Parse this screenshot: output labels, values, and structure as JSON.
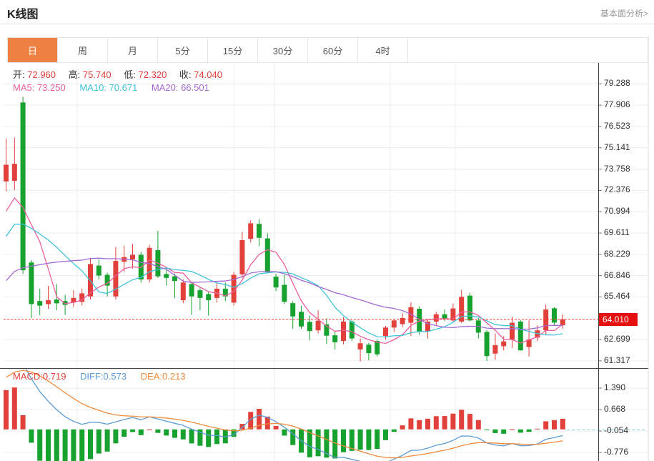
{
  "header": {
    "title": "K线图",
    "link": "基本面分析>"
  },
  "tabs": {
    "active_index": 0,
    "items": [
      "日",
      "周",
      "月",
      "5分",
      "15分",
      "30分",
      "60分",
      "4时"
    ]
  },
  "info_bar": {
    "open_label": "开:",
    "open_value": "72.960",
    "high_label": "高:",
    "high_value": "75.740",
    "low_label": "低:",
    "low_value": "72.320",
    "close_label": "收:",
    "close_value": "74.040"
  },
  "ma_bar": {
    "ma5": "MA5: 73.250",
    "ma10": "MA10: 70.671",
    "ma20": "MA20: 66.501"
  },
  "macd_bar": {
    "macd": "MACD:0.719",
    "diff": "DIFF:0.573",
    "dea": "DEA:0.213"
  },
  "chart_data": {
    "type": "candlestick",
    "title": "K线图 日K with MACD",
    "legend_position": "top-left overlay",
    "grid": true,
    "price_axis_ticks": [
      "79.288",
      "77.906",
      "76.523",
      "75.141",
      "73.758",
      "72.376",
      "70.994",
      "69.611",
      "68.229",
      "66.846",
      "65.464",
      "62.699",
      "61.317"
    ],
    "price_axis_range": [
      60.85,
      80.6
    ],
    "macd_axis_ticks": [
      "1.390",
      "0.668",
      "-0.054",
      "-0.776"
    ],
    "macd_axis_range": [
      -1.06,
      2.04
    ],
    "current_price": 64.01,
    "current_price_label": "64.010",
    "candles_ohlc": [
      [
        72.96,
        75.74,
        72.32,
        74.04
      ],
      [
        73.0,
        75.8,
        72.4,
        74.1
      ],
      [
        78.08,
        78.45,
        66.95,
        67.2
      ],
      [
        67.7,
        67.85,
        64.1,
        65.0
      ],
      [
        65.2,
        66.0,
        64.3,
        64.9
      ],
      [
        65.0,
        66.2,
        64.7,
        65.25
      ],
      [
        65.3,
        66.3,
        64.6,
        65.05
      ],
      [
        65.2,
        65.6,
        64.3,
        64.95
      ],
      [
        65.1,
        65.9,
        64.8,
        65.4
      ],
      [
        65.15,
        66.0,
        64.9,
        65.7
      ],
      [
        65.5,
        68.0,
        65.3,
        67.6
      ],
      [
        67.5,
        67.9,
        66.6,
        66.85
      ],
      [
        66.9,
        67.05,
        65.5,
        66.2
      ],
      [
        65.5,
        68.7,
        65.3,
        67.8
      ],
      [
        67.75,
        68.8,
        67.1,
        68.05
      ],
      [
        67.9,
        68.9,
        67.3,
        68.2
      ],
      [
        68.2,
        68.4,
        66.4,
        66.6
      ],
      [
        66.6,
        68.85,
        66.4,
        68.65
      ],
      [
        68.5,
        69.75,
        66.7,
        66.8
      ],
      [
        66.95,
        67.4,
        66.2,
        66.7
      ],
      [
        66.8,
        67.0,
        65.4,
        66.5
      ],
      [
        65.25,
        66.6,
        65.05,
        66.4
      ],
      [
        66.3,
        66.45,
        64.3,
        65.5
      ],
      [
        65.9,
        66.1,
        64.6,
        65.4
      ],
      [
        65.65,
        65.8,
        64.25,
        65.25
      ],
      [
        65.4,
        66.4,
        65.1,
        66.0
      ],
      [
        66.0,
        66.4,
        65.2,
        65.5
      ],
      [
        65.1,
        67.1,
        64.9,
        66.9
      ],
      [
        66.93,
        69.69,
        66.7,
        69.15
      ],
      [
        69.23,
        70.43,
        69.0,
        70.24
      ],
      [
        70.2,
        70.5,
        68.76,
        69.3
      ],
      [
        69.26,
        69.6,
        67.0,
        67.06
      ],
      [
        66.78,
        66.97,
        65.85,
        66.08
      ],
      [
        66.25,
        66.9,
        65.0,
        65.15
      ],
      [
        65.06,
        65.2,
        63.4,
        64.2
      ],
      [
        64.5,
        64.9,
        63.4,
        63.55
      ],
      [
        63.85,
        64.27,
        62.65,
        63.25
      ],
      [
        63.3,
        64.6,
        63.1,
        63.92
      ],
      [
        63.69,
        64.08,
        62.42,
        62.95
      ],
      [
        62.98,
        63.2,
        62.06,
        62.53
      ],
      [
        62.61,
        64.16,
        62.4,
        63.87
      ],
      [
        63.87,
        63.95,
        62.6,
        62.77
      ],
      [
        62.06,
        62.77,
        61.28,
        62.46
      ],
      [
        62.37,
        62.5,
        61.35,
        61.82
      ],
      [
        62.61,
        62.7,
        61.6,
        61.74
      ],
      [
        62.93,
        63.6,
        62.7,
        63.48
      ],
      [
        63.48,
        64.0,
        63.2,
        63.94
      ],
      [
        63.7,
        64.4,
        63.5,
        64.1
      ],
      [
        63.79,
        65.12,
        62.93,
        64.8
      ],
      [
        64.7,
        64.85,
        63.0,
        63.2
      ],
      [
        63.24,
        63.95,
        62.77,
        63.87
      ],
      [
        63.87,
        64.5,
        63.6,
        64.34
      ],
      [
        64.34,
        64.65,
        63.9,
        64.03
      ],
      [
        63.94,
        65.04,
        63.8,
        64.72
      ],
      [
        63.87,
        65.94,
        63.77,
        65.47
      ],
      [
        65.55,
        65.74,
        63.9,
        63.94
      ],
      [
        63.94,
        64.1,
        62.77,
        63.15
      ],
      [
        63.2,
        63.3,
        61.32,
        61.63
      ],
      [
        61.79,
        63.1,
        61.38,
        62.34
      ],
      [
        62.27,
        62.93,
        62.0,
        62.58
      ],
      [
        62.7,
        64.18,
        62.15,
        63.79
      ],
      [
        63.87,
        63.95,
        61.99,
        62.0
      ],
      [
        62.22,
        63.94,
        61.6,
        62.7
      ],
      [
        62.83,
        63.63,
        62.6,
        63.3
      ],
      [
        63.3,
        64.96,
        62.99,
        64.65
      ],
      [
        64.73,
        64.8,
        63.6,
        63.8
      ],
      [
        63.63,
        64.34,
        63.4,
        64.01
      ]
    ],
    "indicator_seed_prior_closes": [
      62.0,
      62.2,
      62.5,
      62.8,
      63.0,
      63.3,
      63.6,
      64.0,
      64.5,
      65.0,
      65.6,
      66.3,
      67.0,
      67.8,
      68.5,
      69.2,
      69.8,
      70.3,
      70.6,
      70.4
    ],
    "ma_periods": [
      5,
      10,
      20
    ],
    "macd_params": [
      12,
      26,
      9
    ],
    "vertical_gridlines_x": [
      108,
      327,
      384,
      546,
      637
    ],
    "colors": {
      "up": "#e2403a",
      "down": "#17a12e",
      "ma5": "#ec5f9e",
      "ma10": "#3fc3da",
      "ma20": "#a569d2",
      "diff_line": "#5b9bd5",
      "dea_line": "#ef8a3a",
      "price_dashed_line": "#ff3b30",
      "badge_bg": "#e60f0f",
      "zero_dashed_line": "#8fd8e8",
      "grid": "#ececec",
      "axis": "#444444",
      "tab_active_bg": "#ee8041"
    }
  }
}
